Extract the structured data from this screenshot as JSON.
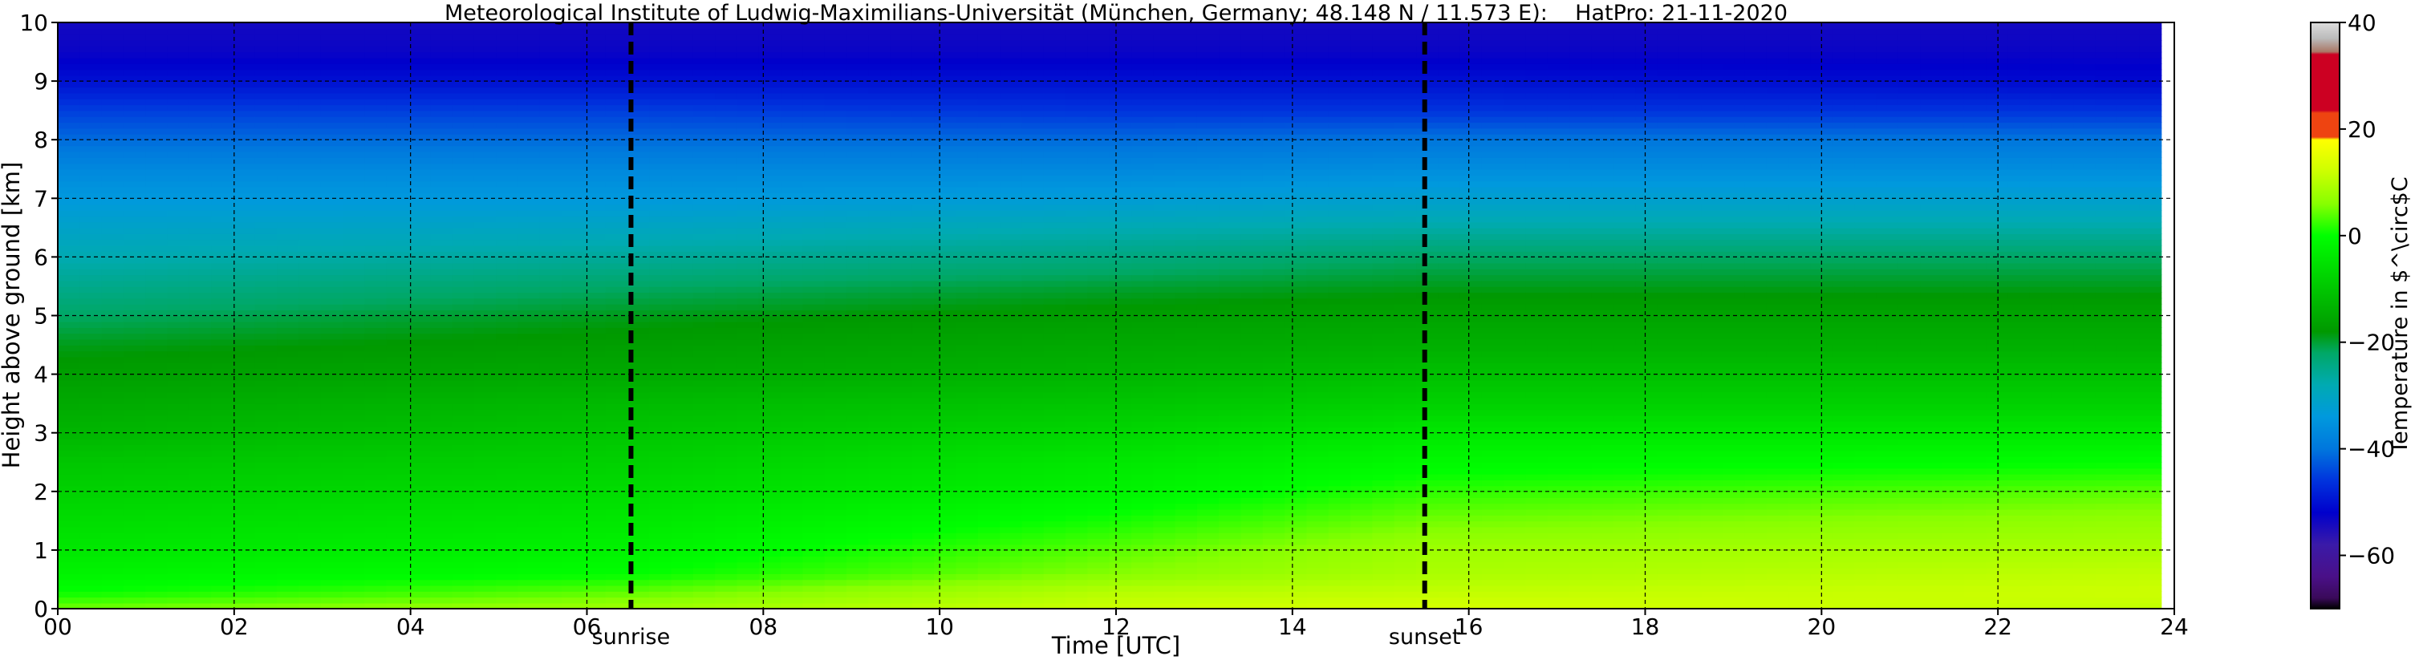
{
  "chart_data": {
    "type": "heatmap",
    "title": "Meteorological Institute of Ludwig-Maximilians-Universität (München, Germany; 48.148 N / 11.573 E):    HatPro: 21-11-2020",
    "xlabel": "Time [UTC]",
    "ylabel": "Height above ground [km]",
    "xlim": [
      0,
      24
    ],
    "ylim": [
      0,
      10
    ],
    "x_ticks": [
      0,
      2,
      4,
      6,
      8,
      10,
      12,
      14,
      16,
      18,
      20,
      22,
      24
    ],
    "x_tick_labels": [
      "00",
      "02",
      "04",
      "06",
      "08",
      "10",
      "12",
      "14",
      "16",
      "18",
      "20",
      "22",
      "24"
    ],
    "y_ticks": [
      0,
      1,
      2,
      3,
      4,
      5,
      6,
      7,
      8,
      9,
      10
    ],
    "y_tick_labels": [
      "0",
      "1",
      "2",
      "3",
      "4",
      "5",
      "6",
      "7",
      "8",
      "9",
      "10"
    ],
    "grid": true,
    "annotations": [
      {
        "label": "sunrise",
        "x": 6.5
      },
      {
        "label": "sunset",
        "x": 15.5
      }
    ],
    "colorbar": {
      "label": "Temperature in $^\\circ$C",
      "range": [
        -70,
        40
      ],
      "ticks": [
        40,
        20,
        0,
        -20,
        -40,
        -60
      ],
      "stops": [
        {
          "v": -70,
          "c": "#000000"
        },
        {
          "v": -68,
          "c": "#3a0a5a"
        },
        {
          "v": -64,
          "c": "#4a1088"
        },
        {
          "v": -58,
          "c": "#3a1aa8"
        },
        {
          "v": -52,
          "c": "#0000cc"
        },
        {
          "v": -46,
          "c": "#0033dd"
        },
        {
          "v": -40,
          "c": "#0077dd"
        },
        {
          "v": -34,
          "c": "#0099dd"
        },
        {
          "v": -28,
          "c": "#00aab2"
        },
        {
          "v": -22,
          "c": "#00a866"
        },
        {
          "v": -18,
          "c": "#009900"
        },
        {
          "v": -12,
          "c": "#00bb00"
        },
        {
          "v": -6,
          "c": "#00dd00"
        },
        {
          "v": 0,
          "c": "#00ff00"
        },
        {
          "v": 6,
          "c": "#88ff00"
        },
        {
          "v": 12,
          "c": "#ccff00"
        },
        {
          "v": 18,
          "c": "#ffff00"
        },
        {
          "v": 18.5,
          "c": "#ee4411"
        },
        {
          "v": 23,
          "c": "#ee4411"
        },
        {
          "v": 23.5,
          "c": "#cc0022"
        },
        {
          "v": 34,
          "c": "#cc0022"
        },
        {
          "v": 34.5,
          "c": "#aa7766"
        },
        {
          "v": 37,
          "c": "#bbbbbb"
        },
        {
          "v": 40,
          "c": "#dddddd"
        }
      ]
    },
    "layers": {
      "x": [
        0,
        6.5,
        12,
        15.5,
        24
      ],
      "height_km": [
        0,
        0.3,
        0.6,
        1,
        1.5,
        2,
        2.5,
        3,
        3.5,
        4,
        4.5,
        5,
        5.5,
        6,
        6.5,
        7,
        7.5,
        8,
        8.5,
        9,
        9.5,
        10
      ],
      "temperature_c": [
        [
          5,
          8,
          12,
          13,
          11
        ],
        [
          0,
          4,
          10,
          11,
          12
        ],
        [
          -2,
          0,
          6,
          9,
          11
        ],
        [
          -4,
          -2,
          4,
          8,
          9
        ],
        [
          -6,
          -4,
          1,
          5,
          7
        ],
        [
          -8,
          -6,
          -2,
          2,
          4
        ],
        [
          -10,
          -8,
          -4,
          -1,
          0
        ],
        [
          -13,
          -10,
          -7,
          -4,
          -4
        ],
        [
          -15,
          -12,
          -10,
          -8,
          -8
        ],
        [
          -17,
          -15,
          -13,
          -11,
          -11
        ],
        [
          -19,
          -17,
          -15,
          -14,
          -14
        ],
        [
          -22,
          -19,
          -17,
          -16,
          -16
        ],
        [
          -25,
          -22,
          -20,
          -19,
          -19
        ],
        [
          -28,
          -26,
          -24,
          -22,
          -22
        ],
        [
          -31,
          -30,
          -28,
          -27,
          -27
        ],
        [
          -34,
          -34,
          -33,
          -32,
          -32
        ],
        [
          -37,
          -37,
          -37,
          -36,
          -36
        ],
        [
          -41,
          -41,
          -41,
          -40,
          -40
        ],
        [
          -45,
          -45,
          -46,
          -46,
          -46
        ],
        [
          -50,
          -50,
          -50,
          -50,
          -51
        ],
        [
          -53,
          -53,
          -53,
          -53,
          -53
        ],
        [
          -54,
          -54,
          -54,
          -54,
          -54
        ]
      ]
    },
    "no_data_after_x": 23.85
  }
}
